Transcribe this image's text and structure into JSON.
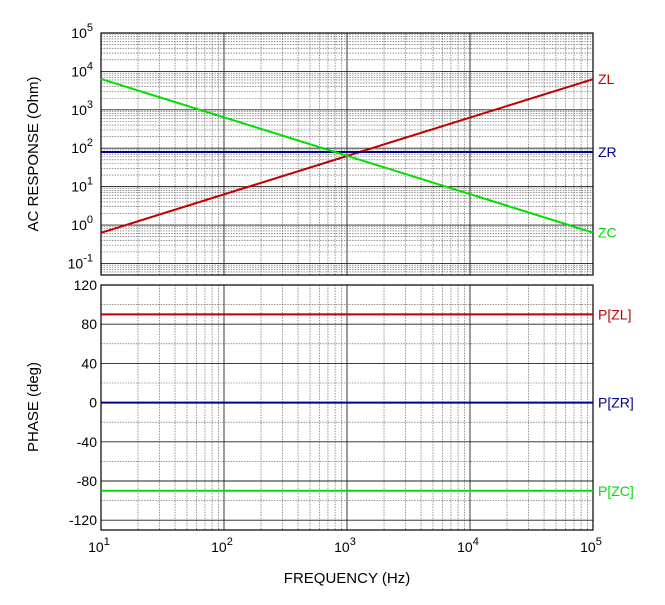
{
  "chart_data": [
    {
      "type": "line",
      "title": "",
      "ylabel": "AC RESPONSE  (Ohm)",
      "xscale": "log",
      "yscale": "log",
      "xlim": [
        10,
        100000
      ],
      "ylim": [
        0.05,
        100000
      ],
      "grid": true,
      "yticks": [
        {
          "base": "10",
          "exp": "5"
        },
        {
          "base": "10",
          "exp": "4"
        },
        {
          "base": "10",
          "exp": "3"
        },
        {
          "base": "10",
          "exp": "2"
        },
        {
          "base": "10",
          "exp": "1"
        },
        {
          "base": "10",
          "exp": "0"
        },
        {
          "base": "10",
          "exp": "-1"
        }
      ],
      "series": [
        {
          "name": "ZL",
          "color": "#c00000",
          "x": [
            10,
            100000
          ],
          "y": [
            0.628,
            6283
          ]
        },
        {
          "name": "ZR",
          "color": "#00008b",
          "x": [
            10,
            100000
          ],
          "y": [
            80,
            80
          ]
        },
        {
          "name": "ZC",
          "color": "#00e000",
          "x": [
            10,
            100000
          ],
          "y": [
            6366,
            0.637
          ]
        }
      ]
    },
    {
      "type": "line",
      "title": "",
      "ylabel": "PHASE  (deg)",
      "xlabel": "FREQUENCY  (Hz)",
      "xscale": "log",
      "xlim": [
        10,
        100000
      ],
      "ylim": [
        -130,
        120
      ],
      "grid": true,
      "yticks": [
        "120",
        "80",
        "40",
        "0",
        "-40",
        "-80",
        "-120"
      ],
      "xticks": [
        {
          "base": "10",
          "exp": "1"
        },
        {
          "base": "10",
          "exp": "2"
        },
        {
          "base": "10",
          "exp": "3"
        },
        {
          "base": "10",
          "exp": "4"
        },
        {
          "base": "10",
          "exp": "5"
        }
      ],
      "series": [
        {
          "name": "P[ZL]",
          "color": "#c00000",
          "x": [
            10,
            100000
          ],
          "y": [
            90,
            90
          ]
        },
        {
          "name": "P[ZR]",
          "color": "#00008b",
          "x": [
            10,
            100000
          ],
          "y": [
            0,
            0
          ]
        },
        {
          "name": "P[ZC]",
          "color": "#00e000",
          "x": [
            10,
            100000
          ],
          "y": [
            -90,
            -90
          ]
        }
      ]
    }
  ]
}
